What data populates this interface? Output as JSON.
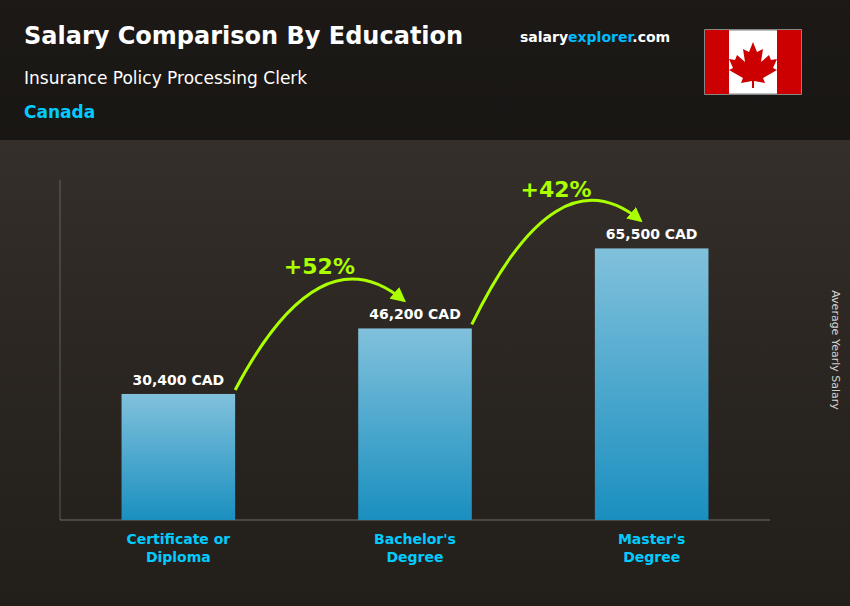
{
  "chart_data": {
    "type": "bar",
    "title": "Salary Comparison By Education",
    "subtitle": "Insurance Policy Processing Clerk",
    "country": "Canada",
    "source": [
      "salary",
      "explorer",
      ".com"
    ],
    "y_label": "Average Yearly Salary",
    "categories": [
      "Certificate or\nDiploma",
      "Bachelor's\nDegree",
      "Master's\nDegree"
    ],
    "values": [
      30400,
      46200,
      65500
    ],
    "value_labels": [
      "30,400 CAD",
      "46,200 CAD",
      "65,500 CAD"
    ],
    "data_labels": true,
    "color": "#1a8fbf",
    "ylim": [
      0,
      82000
    ],
    "tick_labels": "x",
    "annotations": [
      {
        "text": "+52%",
        "color": "#aaff00"
      },
      {
        "text": "+42%",
        "color": "#aaff00"
      }
    ]
  }
}
